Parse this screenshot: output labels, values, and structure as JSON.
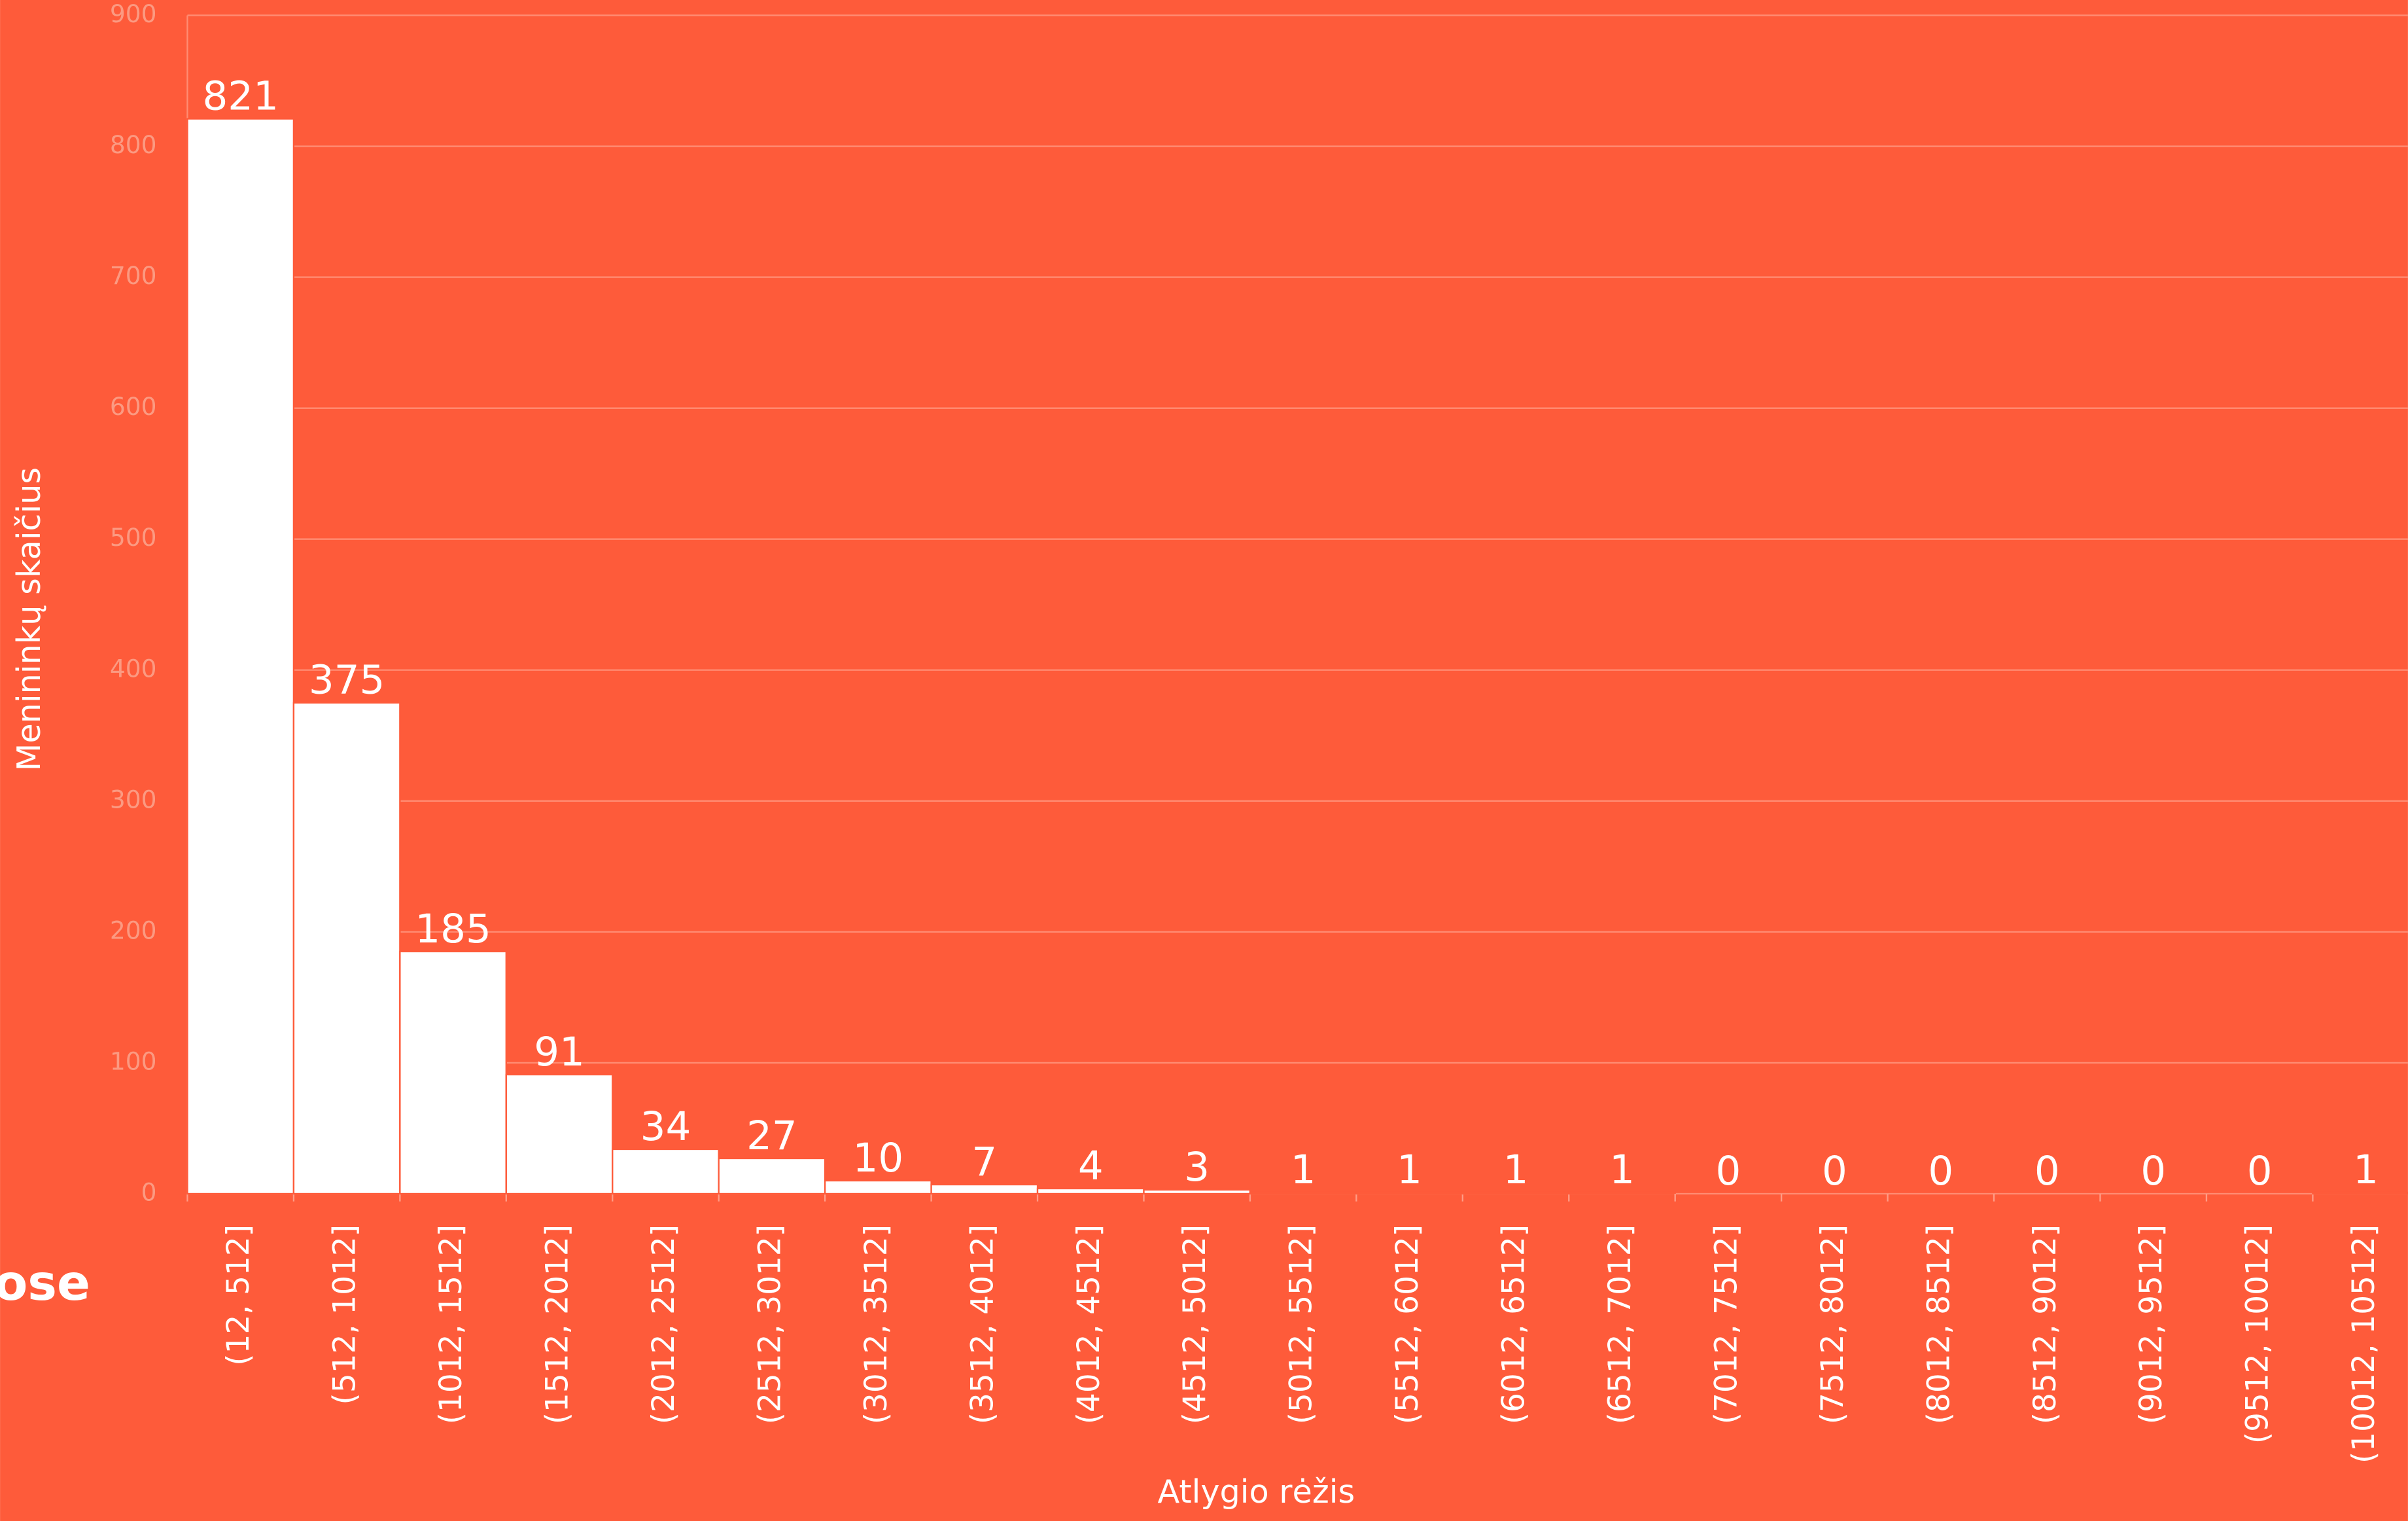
{
  "fragment_text": "ose",
  "chart_data": {
    "type": "bar",
    "y_label": "Menininkų skaičius",
    "x_label": "Atlygio rėžis",
    "categories": [
      "(12, 512]",
      "(512, 1012]",
      "(1012, 1512]",
      "(1512, 2012]",
      "(2012, 2512]",
      "(2512, 3012]",
      "(3012, 3512]",
      "(3512, 4012]",
      "(4012, 4512]",
      "(4512, 5012]",
      "(5012, 5512]",
      "(5512, 6012]",
      "(6012, 6512]",
      "(6512, 7012]",
      "(7012, 7512]",
      "(7512, 8012]",
      "(8012, 8512]",
      "(8512, 9012]",
      "(9012, 9512]",
      "(9512, 10012]",
      "(10012, 10512]"
    ],
    "values": [
      821,
      375,
      185,
      91,
      34,
      27,
      10,
      7,
      4,
      3,
      1,
      1,
      1,
      1,
      0,
      0,
      0,
      0,
      0,
      0,
      1
    ],
    "color": "#ffffff",
    "background": "#fe5b3a",
    "ylim": [
      0,
      900
    ],
    "yticks": [
      0,
      100,
      200,
      300,
      400,
      500,
      600,
      700,
      800,
      900
    ],
    "grid": true
  }
}
